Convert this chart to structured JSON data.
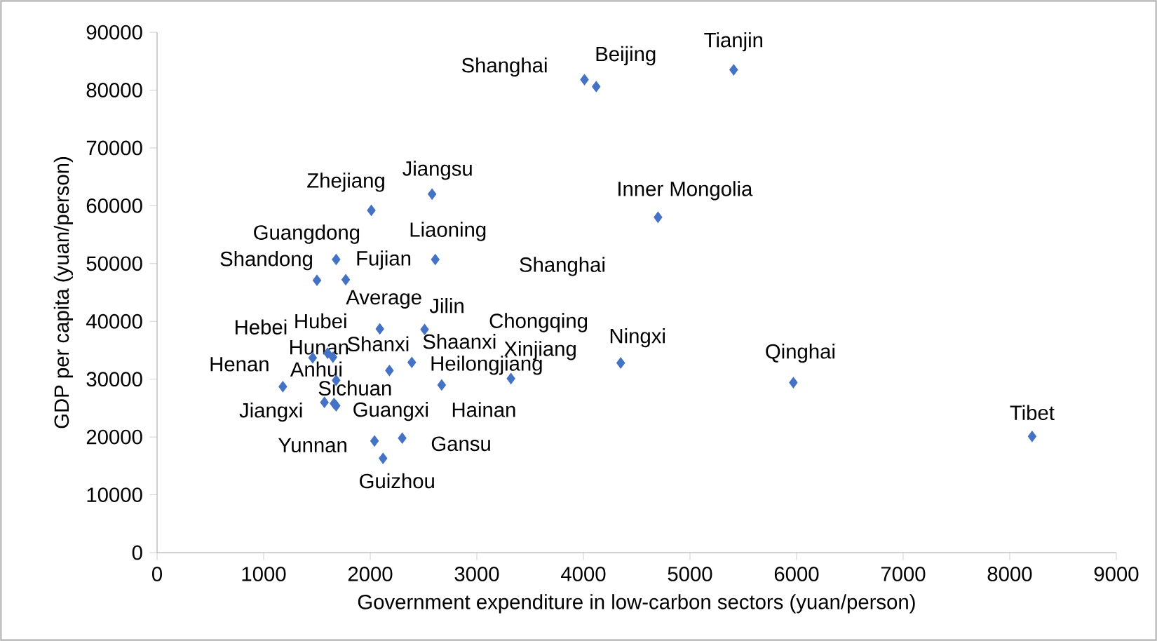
{
  "chart_data": {
    "type": "scatter",
    "xlabel": "Government expenditure in low-carbon sectors (yuan/person)",
    "ylabel": "GDP per capita (yuan/person)",
    "xlim": [
      0,
      9000
    ],
    "xticks": [
      0,
      1000,
      2000,
      3000,
      4000,
      5000,
      6000,
      7000,
      8000,
      9000
    ],
    "ylim": [
      0,
      90000
    ],
    "yticks": [
      0,
      10000,
      20000,
      30000,
      40000,
      50000,
      60000,
      70000,
      80000,
      90000
    ],
    "marker": "diamond",
    "series": [
      {
        "color": "#4472c4",
        "x": [
          4010,
          4120,
          5410,
          4700,
          2580,
          2010,
          1680,
          2610,
          1500,
          1770,
          2090,
          2510,
          1460,
          1600,
          1650,
          2180,
          2390,
          2670,
          3320,
          4350,
          5970,
          8210,
          1180,
          1680,
          1660,
          1570,
          1680,
          2040,
          2300,
          2120
        ],
        "values": [
          81800,
          80600,
          83500,
          58000,
          62000,
          59200,
          50700,
          50700,
          47100,
          47200,
          38700,
          38600,
          33700,
          34500,
          33800,
          31500,
          32900,
          29000,
          30100,
          32800,
          29400,
          20100,
          28700,
          29800,
          25800,
          26000,
          25400,
          19300,
          19800,
          16300
        ]
      }
    ],
    "annotations": [
      {
        "text": "Shanghai",
        "x": 4010,
        "y": 81800
      },
      {
        "text": "Beijing",
        "x": 4120,
        "y": 80600
      },
      {
        "text": "Tianjin",
        "x": 5410,
        "y": 83500
      },
      {
        "text": "Inner Mongolia",
        "x": 4700,
        "y": 58000
      },
      {
        "text": "Jiangsu",
        "x": 2580,
        "y": 62000
      },
      {
        "text": "Zhejiang",
        "x": 2010,
        "y": 59200
      },
      {
        "text": "Guangdong",
        "x": 1680,
        "y": 50700
      },
      {
        "text": "Liaoning",
        "x": 2610,
        "y": 50700
      },
      {
        "text": "Shandong",
        "x": 1500,
        "y": 47100
      },
      {
        "text": "Fujian",
        "x": 1770,
        "y": 47200
      },
      {
        "text": "Average",
        "x": 2090,
        "y": 38700
      },
      {
        "text": "Jilin",
        "x": 2510,
        "y": 38600
      },
      {
        "text": "Hebei",
        "x": 1460,
        "y": 33700
      },
      {
        "text": "Hubei",
        "x": 1600,
        "y": 34500
      },
      {
        "text": "Hunan",
        "x": 1650,
        "y": 33800
      },
      {
        "text": "Shanxi",
        "x": 2180,
        "y": 31500
      },
      {
        "text": "Shaanxi",
        "x": 2390,
        "y": 32900
      },
      {
        "text": "Heilongjiang",
        "x": 2670,
        "y": 29000
      },
      {
        "text": "Xinjiang",
        "x": 3320,
        "y": 30100
      },
      {
        "text": "Ningxi",
        "x": 4350,
        "y": 32800
      },
      {
        "text": "Qinghai",
        "x": 5970,
        "y": 29400
      },
      {
        "text": "Tibet",
        "x": 8210,
        "y": 20100
      },
      {
        "text": "Henan",
        "x": 1180,
        "y": 28700
      },
      {
        "text": "Anhui",
        "x": 1680,
        "y": 29800
      },
      {
        "text": "Sichuan",
        "x": 1660,
        "y": 25800
      },
      {
        "text": "Jiangxi",
        "x": 1570,
        "y": 26000
      },
      {
        "text": "Guangxi",
        "x": 1680,
        "y": 25400
      },
      {
        "text": "Yunnan",
        "x": 2040,
        "y": 19300
      },
      {
        "text": "Gansu",
        "x": 2300,
        "y": 19800
      },
      {
        "text": "Guizhou",
        "x": 2120,
        "y": 16300
      },
      "Hainan",
      "Chongqing",
      "Shanghai"
    ]
  }
}
